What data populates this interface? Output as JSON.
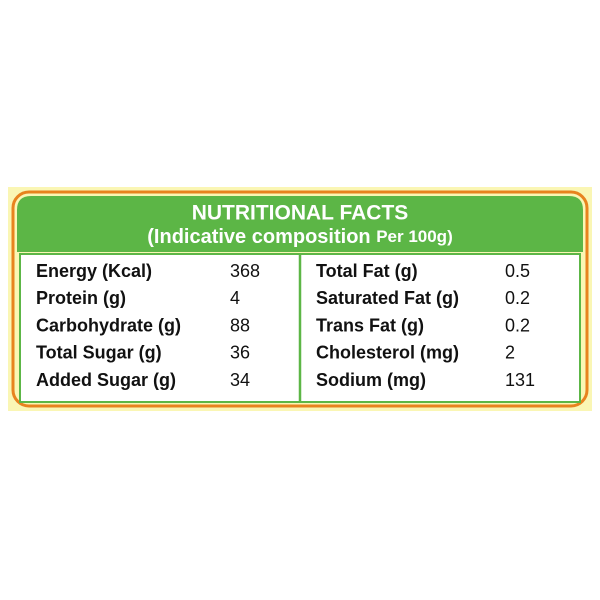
{
  "header": {
    "title": "NUTRITIONAL FACTS",
    "subtitle": "(Indicative composition",
    "subtitle_unit": "Per 100g)"
  },
  "table": {
    "left": [
      {
        "label": "Energy (Kcal)",
        "value": 368
      },
      {
        "label": "Protein (g)",
        "value": 4
      },
      {
        "label": "Carbohydrate (g)",
        "value": 88
      },
      {
        "label": "Total Sugar (g)",
        "value": 36
      },
      {
        "label": "Added Sugar (g)",
        "value": 34
      }
    ],
    "right": [
      {
        "label": "Total Fat (g)",
        "value": 0.5
      },
      {
        "label": "Saturated Fat (g)",
        "value": 0.2
      },
      {
        "label": "Trans Fat (g)",
        "value": 0.2
      },
      {
        "label": "Cholesterol (mg)",
        "value": 2
      },
      {
        "label": "Sodium (mg)",
        "value": 131
      }
    ]
  }
}
